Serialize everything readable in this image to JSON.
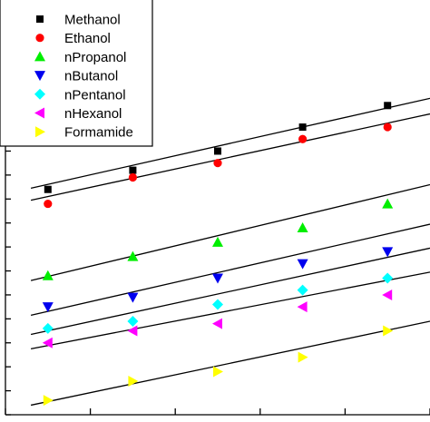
{
  "chart_data": {
    "type": "scatter",
    "title": "",
    "xlabel": "",
    "ylabel": "",
    "xlim": [
      0.5,
      5.5
    ],
    "ylim": [
      0.0,
      17.0
    ],
    "x_ticks": [
      0.5,
      1.5,
      2.5,
      3.5,
      4.5,
      5.5
    ],
    "y_ticks": [
      0.0,
      1.0,
      2.0,
      3.0,
      4.0,
      5.0,
      6.0,
      7.0,
      8.0,
      9.0,
      10.0,
      11.0,
      12.0,
      13.0,
      14.0
    ],
    "legend_position": "top-left",
    "series": [
      {
        "name": "Methanol",
        "marker": "square",
        "color": "#000000",
        "x": [
          1,
          2,
          3,
          4,
          5
        ],
        "y": [
          9.4,
          10.2,
          11.0,
          12.0,
          12.9
        ]
      },
      {
        "name": "Ethanol",
        "marker": "circle",
        "color": "#ff0000",
        "x": [
          1,
          2,
          3,
          4,
          5
        ],
        "y": [
          8.8,
          9.9,
          10.5,
          11.5,
          12.0
        ]
      },
      {
        "name": "nPropanol",
        "marker": "triangle-up",
        "color": "#00ee00",
        "x": [
          1,
          2,
          3,
          4,
          5
        ],
        "y": [
          5.8,
          6.6,
          7.2,
          7.8,
          8.8
        ]
      },
      {
        "name": "nButanol",
        "marker": "triangle-down",
        "color": "#0000ee",
        "x": [
          1,
          2,
          3,
          4,
          5
        ],
        "y": [
          4.5,
          4.9,
          5.7,
          6.3,
          6.8
        ]
      },
      {
        "name": "nPentanol",
        "marker": "diamond",
        "color": "#00ffff",
        "x": [
          1,
          2,
          3,
          4,
          5
        ],
        "y": [
          3.6,
          3.9,
          4.6,
          5.2,
          5.7
        ]
      },
      {
        "name": "nHexanol",
        "marker": "triangle-left",
        "color": "#ff00ff",
        "x": [
          1,
          2,
          3,
          4,
          5
        ],
        "y": [
          3.0,
          3.5,
          3.8,
          4.5,
          5.0
        ]
      },
      {
        "name": "Formamide",
        "marker": "triangle-right",
        "color": "#ffff00",
        "x": [
          1,
          2,
          3,
          4,
          5
        ],
        "y": [
          0.6,
          1.4,
          1.8,
          2.4,
          3.5
        ]
      }
    ],
    "fit_lines": [
      {
        "x": [
          0.8,
          5.5
        ],
        "y": [
          9.45,
          13.2
        ]
      },
      {
        "x": [
          0.8,
          5.5
        ],
        "y": [
          8.95,
          12.55
        ]
      },
      {
        "x": [
          0.8,
          5.5
        ],
        "y": [
          5.6,
          9.6
        ]
      },
      {
        "x": [
          0.8,
          5.5
        ],
        "y": [
          4.15,
          7.95
        ]
      },
      {
        "x": [
          0.8,
          5.5
        ],
        "y": [
          3.35,
          6.95
        ]
      },
      {
        "x": [
          0.8,
          5.5
        ],
        "y": [
          2.75,
          5.95
        ]
      },
      {
        "x": [
          0.8,
          5.5
        ],
        "y": [
          0.4,
          3.9
        ]
      }
    ]
  }
}
